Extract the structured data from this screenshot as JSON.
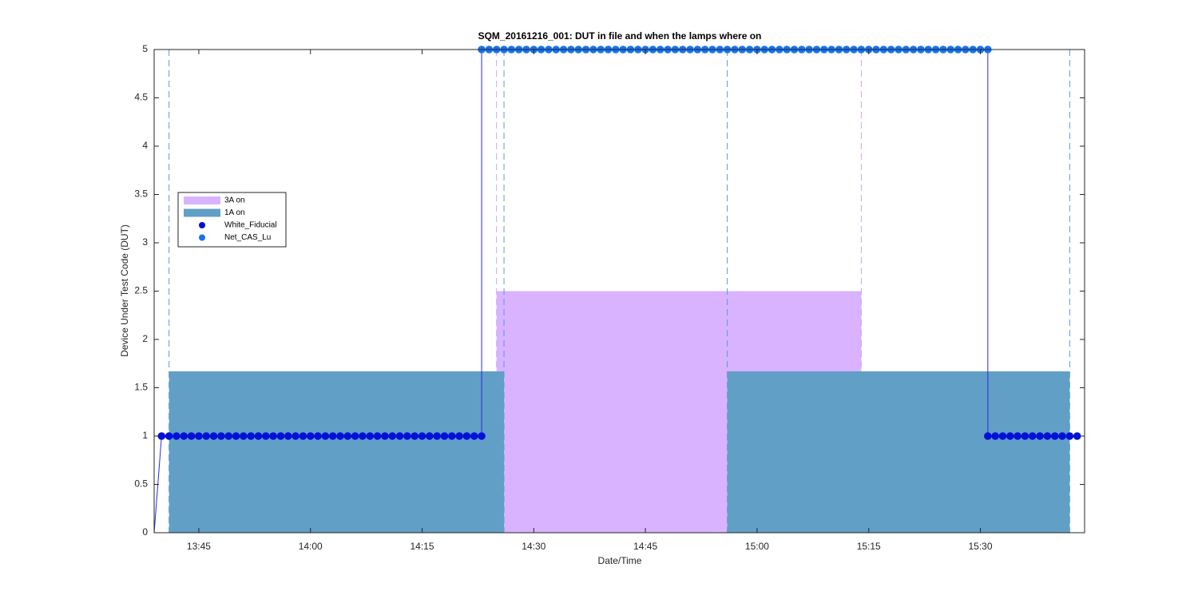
{
  "chart_data": {
    "type": "line",
    "title": "SQM_20161216_001: DUT in file and when the lamps where on",
    "xlabel": "Date/Time",
    "ylabel": "Device Under Test Code (DUT)",
    "xlim": [
      "13:39",
      "15:44"
    ],
    "xticks": [
      "13:45",
      "14:00",
      "14:15",
      "14:30",
      "14:45",
      "15:00",
      "15:15",
      "15:30"
    ],
    "ylim": [
      0,
      5
    ],
    "yticks": [
      0,
      0.5,
      1,
      1.5,
      2,
      2.5,
      3,
      3.5,
      4,
      4.5,
      5
    ],
    "legend": "upper left",
    "regions": [
      {
        "name": "3A on",
        "color": "#d9b3ff",
        "edge_color": "#c9a6f2",
        "height": 2.5,
        "start": "14:25",
        "end": "15:14"
      },
      {
        "name": "1A on",
        "color": "#619fc6",
        "edge_color": "#5b9bd5",
        "height": 1.67,
        "spans": [
          {
            "start": "13:41",
            "end": "14:26"
          },
          {
            "start": "14:56",
            "end": "15:42"
          }
        ]
      }
    ],
    "line": {
      "color": "#2a2ae6",
      "x": [
        "13:39",
        "13:40",
        "14:23",
        "14:23",
        "15:31",
        "15:31",
        "15:43"
      ],
      "values": [
        0,
        1,
        1,
        5,
        5,
        1,
        1
      ]
    },
    "series": [
      {
        "name": "White_Fiducial",
        "color": "#0010d8",
        "x": [
          "13:40",
          "13:41",
          "13:42",
          "13:43",
          "13:44",
          "13:45",
          "13:46",
          "13:47",
          "13:48",
          "13:49",
          "13:50",
          "13:51",
          "13:52",
          "13:53",
          "13:54",
          "13:55",
          "13:56",
          "13:57",
          "13:58",
          "13:59",
          "14:00",
          "14:01",
          "14:02",
          "14:03",
          "14:04",
          "14:05",
          "14:06",
          "14:07",
          "14:08",
          "14:09",
          "14:10",
          "14:11",
          "14:12",
          "14:13",
          "14:14",
          "14:15",
          "14:16",
          "14:17",
          "14:18",
          "14:19",
          "14:20",
          "14:21",
          "14:22",
          "14:23",
          "15:31",
          "15:32",
          "15:33",
          "15:34",
          "15:35",
          "15:36",
          "15:37",
          "15:38",
          "15:39",
          "15:40",
          "15:41",
          "15:42",
          "15:43"
        ],
        "values": [
          1,
          1,
          1,
          1,
          1,
          1,
          1,
          1,
          1,
          1,
          1,
          1,
          1,
          1,
          1,
          1,
          1,
          1,
          1,
          1,
          1,
          1,
          1,
          1,
          1,
          1,
          1,
          1,
          1,
          1,
          1,
          1,
          1,
          1,
          1,
          1,
          1,
          1,
          1,
          1,
          1,
          1,
          1,
          1,
          1,
          1,
          1,
          1,
          1,
          1,
          1,
          1,
          1,
          1,
          1,
          1,
          1
        ]
      },
      {
        "name": "Net_CAS_Lu",
        "color": "#1673f0",
        "x": [
          "14:23",
          "14:24",
          "14:25",
          "14:26",
          "14:27",
          "14:28",
          "14:29",
          "14:30",
          "14:31",
          "14:32",
          "14:33",
          "14:34",
          "14:35",
          "14:36",
          "14:37",
          "14:38",
          "14:39",
          "14:40",
          "14:41",
          "14:42",
          "14:43",
          "14:44",
          "14:45",
          "14:46",
          "14:47",
          "14:48",
          "14:49",
          "14:50",
          "14:51",
          "14:52",
          "14:53",
          "14:54",
          "14:55",
          "14:56",
          "14:57",
          "14:58",
          "14:59",
          "15:00",
          "15:01",
          "15:02",
          "15:03",
          "15:04",
          "15:05",
          "15:06",
          "15:07",
          "15:08",
          "15:09",
          "15:10",
          "15:11",
          "15:12",
          "15:13",
          "15:14",
          "15:15",
          "15:16",
          "15:17",
          "15:18",
          "15:19",
          "15:20",
          "15:21",
          "15:22",
          "15:23",
          "15:24",
          "15:25",
          "15:26",
          "15:27",
          "15:28",
          "15:29",
          "15:30",
          "15:31"
        ],
        "values": [
          5,
          5,
          5,
          5,
          5,
          5,
          5,
          5,
          5,
          5,
          5,
          5,
          5,
          5,
          5,
          5,
          5,
          5,
          5,
          5,
          5,
          5,
          5,
          5,
          5,
          5,
          5,
          5,
          5,
          5,
          5,
          5,
          5,
          5,
          5,
          5,
          5,
          5,
          5,
          5,
          5,
          5,
          5,
          5,
          5,
          5,
          5,
          5,
          5,
          5,
          5,
          5,
          5,
          5,
          5,
          5,
          5,
          5,
          5,
          5,
          5,
          5,
          5,
          5,
          5,
          5,
          5,
          5,
          5
        ]
      }
    ]
  }
}
